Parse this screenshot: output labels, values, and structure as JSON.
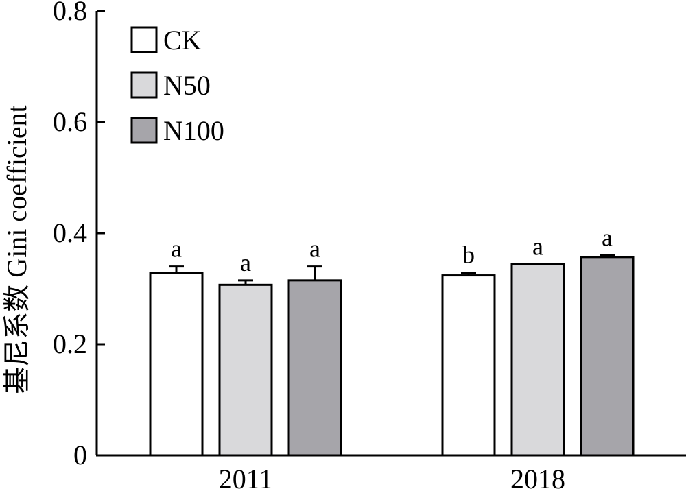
{
  "chart_data": {
    "type": "bar",
    "ylabel": "基尼系数 Gini coefficient",
    "xlabel": "",
    "ylim": [
      0,
      0.8
    ],
    "yticks": [
      0,
      0.2,
      0.4,
      0.6,
      0.8
    ],
    "ytick_labels": [
      "0",
      "0.2",
      "0.4",
      "0.6",
      "0.8"
    ],
    "categories": [
      "2011",
      "2018"
    ],
    "legend_position": "top-left",
    "grid": false,
    "series": [
      {
        "name": "CK",
        "color": "#ffffff",
        "values": [
          0.328,
          0.324
        ],
        "errors": [
          0.012,
          0.005
        ],
        "labels": [
          "a",
          "b"
        ]
      },
      {
        "name": "N50",
        "color": "#d9d9db",
        "values": [
          0.307,
          0.344
        ],
        "errors": [
          0.008,
          0.0
        ],
        "labels": [
          "a",
          "a"
        ]
      },
      {
        "name": "N100",
        "color": "#a6a5aa",
        "values": [
          0.315,
          0.357
        ],
        "errors": [
          0.025,
          0.003
        ],
        "labels": [
          "a",
          "a"
        ]
      }
    ]
  }
}
